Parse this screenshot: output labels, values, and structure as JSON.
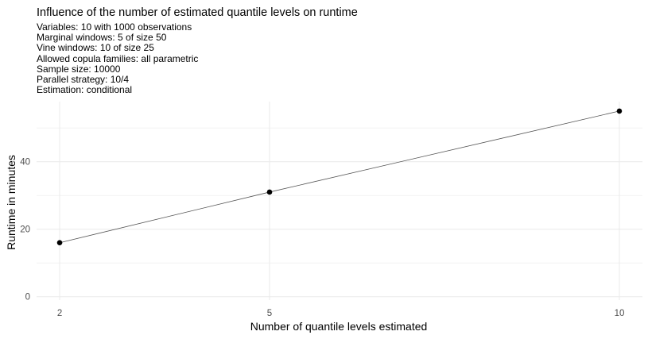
{
  "chart_data": {
    "type": "line",
    "title": "Influence of the number of estimated quantile levels on runtime",
    "subtitle": [
      "Variables: 10 with 1000 observations",
      "Marginal windows: 5 of size 50",
      "Vine windows: 10 of size 25",
      "Allowed copula families: all parametric",
      "Sample size: 10000",
      "Parallel strategy: 10/4",
      "Estimation: conditional"
    ],
    "xlabel": "Number of quantile levels estimated",
    "ylabel": "Runtime in minutes",
    "x": [
      2,
      5,
      10
    ],
    "y": [
      16,
      31,
      55
    ],
    "xticks": [
      2,
      5,
      10
    ],
    "yticks": [
      0,
      20,
      40
    ],
    "xlim": [
      1.67,
      10.33
    ],
    "ylim": [
      -1,
      57.8
    ],
    "grid": true,
    "legend": "none",
    "colors": {
      "line": "#555555",
      "point": "#000000",
      "grid": "#ebebeb"
    }
  }
}
